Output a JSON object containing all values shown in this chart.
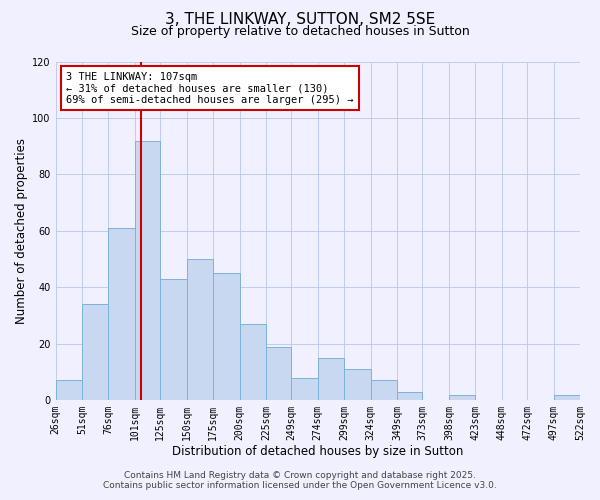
{
  "title": "3, THE LINKWAY, SUTTON, SM2 5SE",
  "subtitle": "Size of property relative to detached houses in Sutton",
  "xlabel": "Distribution of detached houses by size in Sutton",
  "ylabel": "Number of detached properties",
  "bar_color": "#c8d8f0",
  "bar_edge_color": "#7ab4d8",
  "background_color": "#f0f0ff",
  "grid_color": "#c0ccee",
  "vline_x": 107,
  "vline_color": "#cc0000",
  "annotation_title": "3 THE LINKWAY: 107sqm",
  "annotation_line1": "← 31% of detached houses are smaller (130)",
  "annotation_line2": "69% of semi-detached houses are larger (295) →",
  "annotation_box_color": "#ffffff",
  "annotation_box_edge": "#cc0000",
  "bin_edges": [
    26,
    51,
    76,
    101,
    125,
    150,
    175,
    200,
    225,
    249,
    274,
    299,
    324,
    349,
    373,
    398,
    423,
    448,
    472,
    497,
    522
  ],
  "bar_heights": [
    7,
    34,
    61,
    92,
    43,
    50,
    45,
    27,
    19,
    8,
    15,
    11,
    7,
    3,
    0,
    2,
    0,
    0,
    0,
    2
  ],
  "xlim": [
    26,
    522
  ],
  "ylim": [
    0,
    120
  ],
  "yticks": [
    0,
    20,
    40,
    60,
    80,
    100,
    120
  ],
  "xtick_labels": [
    "26sqm",
    "51sqm",
    "76sqm",
    "101sqm",
    "125sqm",
    "150sqm",
    "175sqm",
    "200sqm",
    "225sqm",
    "249sqm",
    "274sqm",
    "299sqm",
    "324sqm",
    "349sqm",
    "373sqm",
    "398sqm",
    "423sqm",
    "448sqm",
    "472sqm",
    "497sqm",
    "522sqm"
  ],
  "footer_line1": "Contains HM Land Registry data © Crown copyright and database right 2025.",
  "footer_line2": "Contains public sector information licensed under the Open Government Licence v3.0.",
  "title_fontsize": 11,
  "subtitle_fontsize": 9,
  "axis_label_fontsize": 8.5,
  "tick_fontsize": 7,
  "footer_fontsize": 6.5,
  "annotation_fontsize": 7.5
}
